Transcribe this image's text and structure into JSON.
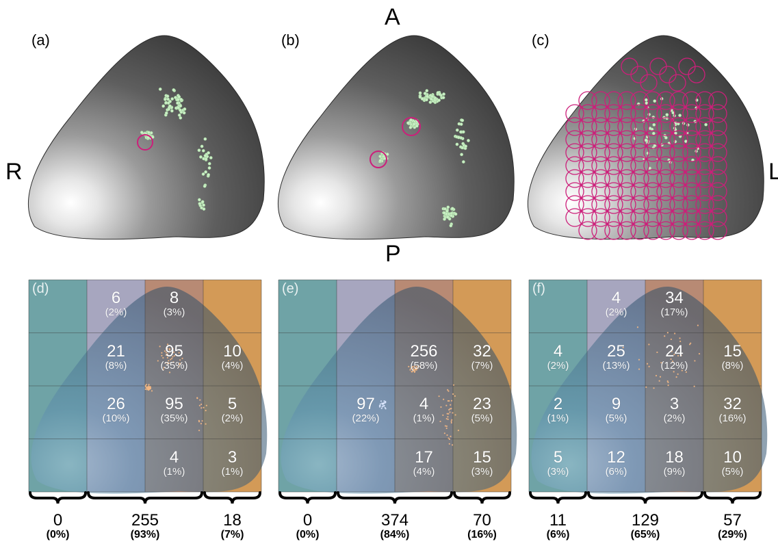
{
  "orientation": {
    "anterior": "A",
    "posterior": "P",
    "right": "R",
    "left": "L"
  },
  "top_panels": [
    {
      "letter": "(a)"
    },
    {
      "letter": "(b)"
    },
    {
      "letter": "(c)"
    }
  ],
  "grid_panels": [
    {
      "letter": "(d)",
      "cells": [
        [
          null,
          {
            "n": "6",
            "p": "(2%)"
          },
          {
            "n": "8",
            "p": "(3%)"
          },
          null
        ],
        [
          null,
          {
            "n": "21",
            "p": "(8%)"
          },
          {
            "n": "95",
            "p": "(35%)"
          },
          {
            "n": "10",
            "p": "(4%)"
          }
        ],
        [
          null,
          {
            "n": "26",
            "p": "(10%)"
          },
          {
            "n": "95",
            "p": "(35%)"
          },
          {
            "n": "5",
            "p": "(2%)"
          }
        ],
        [
          null,
          null,
          {
            "n": "4",
            "p": "(1%)"
          },
          {
            "n": "3",
            "p": "(1%)"
          }
        ]
      ],
      "totals": [
        {
          "n": "0",
          "p": "(0%)"
        },
        {
          "n": "255",
          "p": "(93%)"
        },
        {
          "n": "18",
          "p": "(7%)"
        }
      ]
    },
    {
      "letter": "(e)",
      "cells": [
        [
          null,
          null,
          null,
          null
        ],
        [
          null,
          null,
          {
            "n": "256",
            "p": "(58%)"
          },
          {
            "n": "32",
            "p": "(7%)"
          }
        ],
        [
          null,
          {
            "n": "97",
            "p": "(22%)"
          },
          {
            "n": "4",
            "p": "(1%)"
          },
          {
            "n": "23",
            "p": "(5%)"
          }
        ],
        [
          null,
          null,
          {
            "n": "17",
            "p": "(4%)"
          },
          {
            "n": "15",
            "p": "(3%)"
          }
        ]
      ],
      "totals": [
        {
          "n": "0",
          "p": "(0%)"
        },
        {
          "n": "374",
          "p": "(84%)"
        },
        {
          "n": "70",
          "p": "(16%)"
        }
      ]
    },
    {
      "letter": "(f)",
      "cells": [
        [
          null,
          {
            "n": "4",
            "p": "(2%)"
          },
          {
            "n": "34",
            "p": "(17%)"
          },
          null
        ],
        [
          {
            "n": "4",
            "p": "(2%)"
          },
          {
            "n": "25",
            "p": "(13%)"
          },
          {
            "n": "24",
            "p": "(12%)"
          },
          {
            "n": "15",
            "p": "(8%)"
          }
        ],
        [
          {
            "n": "2",
            "p": "(1%)"
          },
          {
            "n": "9",
            "p": "(5%)"
          },
          {
            "n": "3",
            "p": "(2%)"
          },
          {
            "n": "32",
            "p": "(16%)"
          }
        ],
        [
          {
            "n": "5",
            "p": "(3%)"
          },
          {
            "n": "12",
            "p": "(6%)"
          },
          {
            "n": "18",
            "p": "(9%)"
          },
          {
            "n": "10",
            "p": "(5%)"
          }
        ]
      ],
      "totals": [
        {
          "n": "11",
          "p": "(6%)"
        },
        {
          "n": "129",
          "p": "(65%)"
        },
        {
          "n": "57",
          "p": "(29%)"
        }
      ]
    }
  ],
  "colors": {
    "column_fills": [
      "#6fa3a6",
      "#a7a6bf",
      "#b88a74",
      "#d39a57"
    ],
    "dome_point": "#c9efc4",
    "marker": "#cc1f7a",
    "blue_point": "#dbe7ff",
    "orange_point": "#f4b884"
  }
}
